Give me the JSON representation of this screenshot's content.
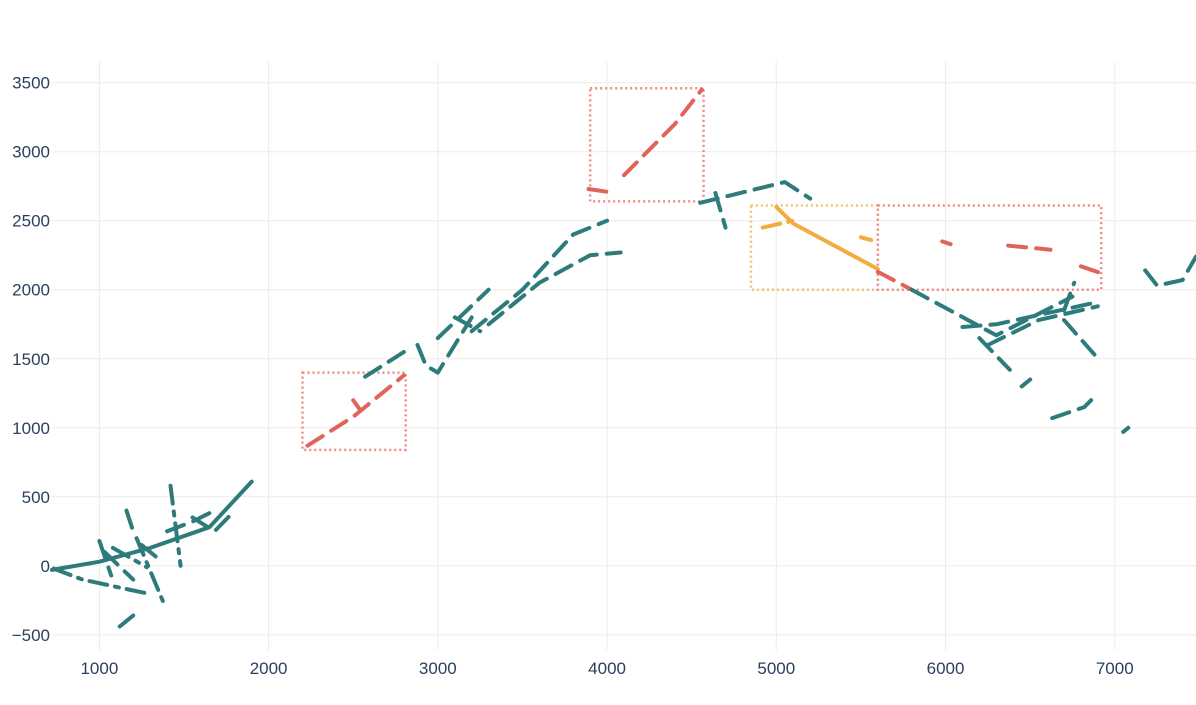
{
  "chart_data": {
    "type": "line",
    "title": "",
    "xlabel": "",
    "ylabel": "",
    "xlim": [
      720,
      7480
    ],
    "ylim": [
      -610,
      3650
    ],
    "grid": true,
    "legend": "none",
    "colors": {
      "segment": "#2e7b7b",
      "highlight_red": "#e0645a",
      "highlight_orange": "#f4ac3c",
      "box_red": "#f08a84",
      "box_orange": "#f7c170"
    },
    "x_ticks": [
      "1000",
      "2000",
      "3000",
      "4000",
      "5000",
      "6000",
      "7000"
    ],
    "y_ticks": [
      "−500",
      "0",
      "500",
      "1000",
      "1500",
      "2000",
      "2500",
      "3000",
      "3500"
    ],
    "series": [
      {
        "style": "solid",
        "color": "segment",
        "points": [
          [
            720,
            -30
          ],
          [
            1000,
            30
          ],
          [
            1300,
            130
          ],
          [
            1650,
            280
          ],
          [
            1900,
            610
          ]
        ]
      },
      {
        "style": "dashdot",
        "color": "segment",
        "points": [
          [
            730,
            -20
          ],
          [
            900,
            -100
          ],
          [
            1280,
            -200
          ]
        ]
      },
      {
        "style": "dash",
        "color": "segment",
        "points": [
          [
            1000,
            180
          ],
          [
            1070,
            -70
          ]
        ]
      },
      {
        "style": "dash",
        "color": "segment",
        "points": [
          [
            1030,
            100
          ],
          [
            1200,
            -100
          ]
        ]
      },
      {
        "style": "dashdot",
        "color": "segment",
        "points": [
          [
            1080,
            130
          ],
          [
            1280,
            -10
          ]
        ]
      },
      {
        "style": "dash",
        "color": "segment",
        "points": [
          [
            1160,
            400
          ],
          [
            1200,
            250
          ]
        ]
      },
      {
        "style": "dashdot",
        "color": "segment",
        "points": [
          [
            1250,
            150
          ],
          [
            1350,
            50
          ]
        ]
      },
      {
        "style": "dashdot",
        "color": "segment",
        "points": [
          [
            1220,
            200
          ],
          [
            1380,
            -270
          ]
        ]
      },
      {
        "style": "dashdot",
        "color": "segment",
        "points": [
          [
            1420,
            580
          ],
          [
            1480,
            0
          ]
        ]
      },
      {
        "style": "dash",
        "color": "segment",
        "points": [
          [
            1400,
            250
          ],
          [
            1550,
            320
          ],
          [
            1680,
            400
          ]
        ]
      },
      {
        "style": "dash",
        "color": "segment",
        "points": [
          [
            1550,
            350
          ],
          [
            1680,
            250
          ],
          [
            1800,
            400
          ]
        ]
      },
      {
        "style": "dash",
        "color": "segment",
        "points": [
          [
            1120,
            -440
          ],
          [
            1200,
            -360
          ]
        ]
      },
      {
        "style": "dash",
        "color": "highlight_red",
        "points": [
          [
            2230,
            870
          ],
          [
            2500,
            1080
          ],
          [
            2800,
            1380
          ]
        ]
      },
      {
        "style": "dash",
        "color": "highlight_red",
        "points": [
          [
            2500,
            1200
          ],
          [
            2540,
            1130
          ]
        ]
      },
      {
        "style": "dash",
        "color": "segment",
        "points": [
          [
            2570,
            1370
          ],
          [
            2800,
            1550
          ]
        ]
      },
      {
        "style": "dash",
        "color": "segment",
        "points": [
          [
            2880,
            1600
          ],
          [
            2930,
            1450
          ],
          [
            3000,
            1400
          ],
          [
            3200,
            1800
          ]
        ]
      },
      {
        "style": "dash",
        "color": "segment",
        "points": [
          [
            3000,
            1650
          ],
          [
            3300,
            2000
          ]
        ]
      },
      {
        "style": "dash",
        "color": "segment",
        "points": [
          [
            3200,
            1700
          ],
          [
            3500,
            2000
          ],
          [
            3650,
            2200
          ],
          [
            3800,
            2400
          ],
          [
            4000,
            2500
          ]
        ]
      },
      {
        "style": "dash",
        "color": "segment",
        "points": [
          [
            3300,
            1750
          ],
          [
            3600,
            2050
          ],
          [
            3900,
            2250
          ],
          [
            4080,
            2270
          ]
        ]
      },
      {
        "style": "dash",
        "color": "segment",
        "points": [
          [
            3100,
            1800
          ],
          [
            3250,
            1700
          ]
        ]
      },
      {
        "style": "dash",
        "color": "highlight_red",
        "points": [
          [
            3890,
            2730
          ],
          [
            4050,
            2700
          ]
        ]
      },
      {
        "style": "dash",
        "color": "highlight_red",
        "points": [
          [
            4100,
            2830
          ],
          [
            4400,
            3200
          ],
          [
            4560,
            3450
          ]
        ]
      },
      {
        "style": "dash",
        "color": "segment",
        "points": [
          [
            4550,
            2630
          ],
          [
            5050,
            2780
          ],
          [
            5200,
            2660
          ]
        ]
      },
      {
        "style": "dash",
        "color": "segment",
        "points": [
          [
            4640,
            2700
          ],
          [
            4700,
            2450
          ]
        ]
      },
      {
        "style": "dashdot",
        "color": "highlight_orange",
        "points": [
          [
            4920,
            2450
          ],
          [
            5100,
            2500
          ]
        ]
      },
      {
        "style": "solid",
        "color": "highlight_orange",
        "points": [
          [
            5000,
            2600
          ],
          [
            5100,
            2480
          ],
          [
            5600,
            2150
          ]
        ]
      },
      {
        "style": "dash",
        "color": "highlight_orange",
        "points": [
          [
            5500,
            2380
          ],
          [
            5560,
            2360
          ]
        ]
      },
      {
        "style": "dash",
        "color": "highlight_red",
        "points": [
          [
            5600,
            2130
          ],
          [
            5800,
            2000
          ]
        ]
      },
      {
        "style": "dash",
        "color": "highlight_red",
        "points": [
          [
            5980,
            2350
          ],
          [
            6030,
            2330
          ]
        ]
      },
      {
        "style": "dash",
        "color": "highlight_red",
        "points": [
          [
            6370,
            2320
          ],
          [
            6620,
            2290
          ]
        ]
      },
      {
        "style": "dash",
        "color": "highlight_red",
        "points": [
          [
            6800,
            2170
          ],
          [
            6920,
            2120
          ]
        ]
      },
      {
        "style": "dash",
        "color": "segment",
        "points": [
          [
            5800,
            2000
          ],
          [
            6300,
            1670
          ],
          [
            6750,
            1950
          ]
        ]
      },
      {
        "style": "dash",
        "color": "segment",
        "points": [
          [
            6100,
            1730
          ],
          [
            6300,
            1750
          ],
          [
            6860,
            1900
          ]
        ]
      },
      {
        "style": "dash",
        "color": "segment",
        "points": [
          [
            6200,
            1650
          ],
          [
            6380,
            1420
          ]
        ]
      },
      {
        "style": "dash",
        "color": "segment",
        "points": [
          [
            6250,
            1600
          ],
          [
            6550,
            1780
          ],
          [
            6900,
            1880
          ]
        ]
      },
      {
        "style": "dash",
        "color": "segment",
        "points": [
          [
            6700,
            1850
          ],
          [
            6760,
            2050
          ]
        ]
      },
      {
        "style": "dash",
        "color": "segment",
        "points": [
          [
            6700,
            1780
          ],
          [
            6880,
            1530
          ]
        ]
      },
      {
        "style": "dash",
        "color": "segment",
        "points": [
          [
            6500,
            1350
          ],
          [
            6450,
            1300
          ]
        ]
      },
      {
        "style": "dash",
        "color": "segment",
        "points": [
          [
            6630,
            1070
          ],
          [
            6820,
            1150
          ],
          [
            6860,
            1200
          ]
        ]
      },
      {
        "style": "dash",
        "color": "segment",
        "points": [
          [
            7050,
            970
          ],
          [
            7080,
            1000
          ]
        ]
      },
      {
        "style": "dash",
        "color": "segment",
        "points": [
          [
            7180,
            2140
          ],
          [
            7250,
            2030
          ],
          [
            7400,
            2070
          ],
          [
            7480,
            2240
          ]
        ]
      }
    ],
    "highlight_boxes": [
      {
        "color": "box_red",
        "x": [
          2200,
          2810
        ],
        "y": [
          840,
          1400
        ]
      },
      {
        "color": "box_red",
        "x": [
          3900,
          4570
        ],
        "y": [
          2640,
          3460
        ]
      },
      {
        "color": "box_orange",
        "x": [
          4850,
          5600
        ],
        "y": [
          2000,
          2610
        ]
      },
      {
        "color": "box_red",
        "x": [
          5600,
          6920
        ],
        "y": [
          2000,
          2610
        ]
      }
    ]
  }
}
